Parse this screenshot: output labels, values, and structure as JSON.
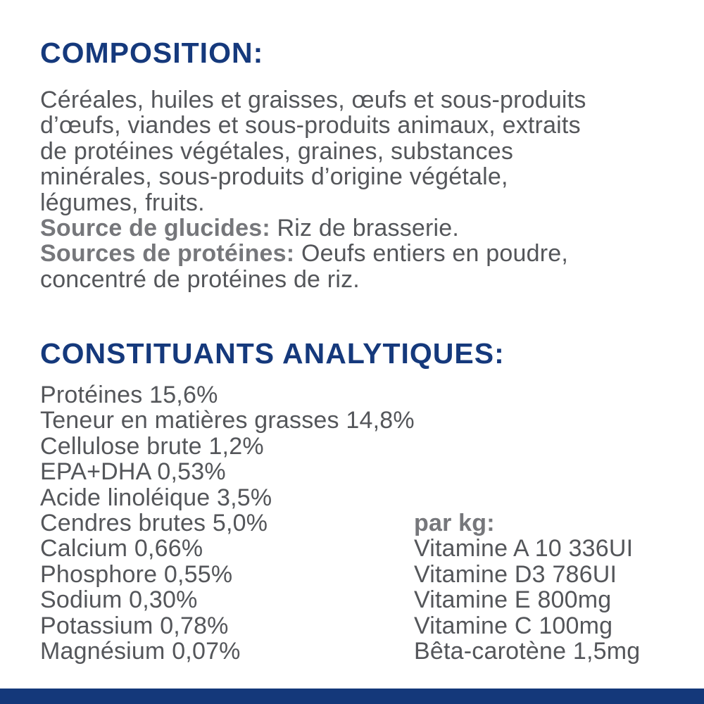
{
  "colors": {
    "brand_navy": "#15397c",
    "body_gray": "#54565a",
    "label_gray": "#76777b",
    "background": "#ffffff"
  },
  "composition": {
    "heading": "COMPOSITION:",
    "lines": [
      "Céréales, huiles et graisses, œufs et sous-produits",
      "d’œufs, viandes et sous-produits animaux, extraits",
      "de protéines végétales, graines, substances",
      "minérales, sous-produits d’origine végétale,",
      "légumes, fruits."
    ],
    "sources": [
      {
        "label": "Source de glucides:",
        "value": "Riz de brasserie."
      },
      {
        "label": "Sources de protéines:",
        "value": "Oeufs entiers en poudre,",
        "continuation": "concentré de protéines de riz."
      }
    ]
  },
  "analytical": {
    "heading": "CONSTITUANTS ANALYTIQUES:",
    "nutrients": [
      {
        "name": "Protéines",
        "value": "15,6%"
      },
      {
        "name": "Teneur en matières grasses",
        "value": "14,8%"
      },
      {
        "name": "Cellulose brute",
        "value": "1,2%"
      },
      {
        "name": "EPA+DHA",
        "value": "0,53%"
      },
      {
        "name": "Acide linoléique",
        "value": "3,5%"
      },
      {
        "name": "Cendres brutes",
        "value": "5,0%"
      },
      {
        "name": "Calcium",
        "value": "0,66%"
      },
      {
        "name": "Phosphore",
        "value": "0,55%"
      },
      {
        "name": "Sodium",
        "value": "0,30%"
      },
      {
        "name": "Potassium",
        "value": "0,78%"
      },
      {
        "name": "Magnésium",
        "value": "0,07%"
      }
    ],
    "per_kg": {
      "heading": "par kg:",
      "vitamins": [
        {
          "name": "Vitamine A",
          "value": "10 336UI"
        },
        {
          "name": "Vitamine D3",
          "value": "786UI"
        },
        {
          "name": "Vitamine E",
          "value": "800mg"
        },
        {
          "name": "Vitamine C",
          "value": "100mg"
        },
        {
          "name": "Bêta-carotène",
          "value": "1,5mg"
        }
      ]
    }
  }
}
